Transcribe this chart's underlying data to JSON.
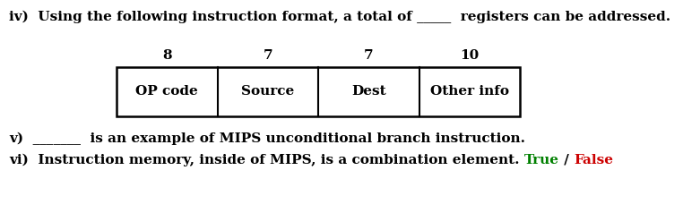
{
  "bg_color": "#ffffff",
  "text_color": "#000000",
  "true_color": "#008000",
  "false_color": "#cc0000",
  "line_iv": "iv)  Using the following instruction format, a total of _____  registers can be addressed.",
  "line_v": "v)  _______  is an example of MIPS unconditional branch instruction.",
  "line_vi_prefix": "vi)  Instruction memory, inside of MIPS, is a combination element. ",
  "true_text": "True",
  "slash_text": " / ",
  "false_text": "False",
  "bit_labels": [
    "8",
    "7",
    "7",
    "10"
  ],
  "field_labels": [
    "OP code",
    "Source",
    "Dest",
    "Other info"
  ],
  "font_size": 11,
  "figw": 7.62,
  "figh": 2.38,
  "dpi": 100
}
